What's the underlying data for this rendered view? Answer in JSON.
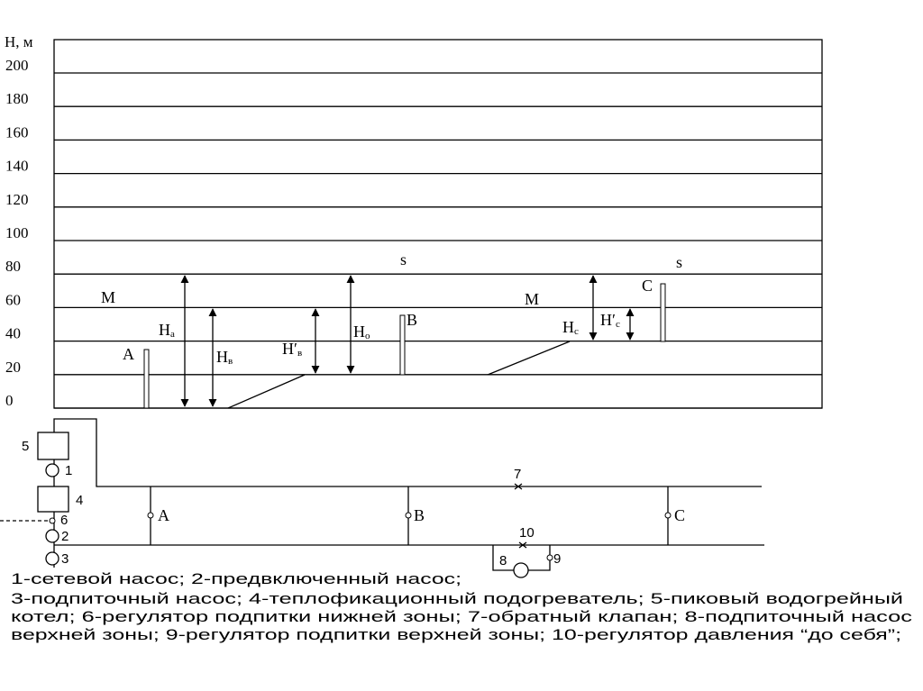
{
  "graph": {
    "axis_label": "H, м",
    "ticks": [
      0,
      20,
      40,
      60,
      80,
      100,
      120,
      140,
      160,
      180,
      200
    ],
    "labels": {
      "m_left": "М",
      "m_right": "М",
      "s_mid": "s",
      "s_right": "s",
      "a": "А",
      "b": "В",
      "c": "С",
      "ha": {
        "main": "H",
        "sub": "а"
      },
      "hv": {
        "main": "H",
        "sub": "в"
      },
      "hv2": {
        "main": "H′",
        "sub": "в"
      },
      "ho": {
        "main": "H",
        "sub": "о"
      },
      "hc": {
        "main": "H",
        "sub": "с"
      },
      "hc2": {
        "main": "H′",
        "sub": "с"
      }
    }
  },
  "scheme": {
    "labels": {
      "n5": "5",
      "n1": "1",
      "n4": "4",
      "n6": "6",
      "n2": "2",
      "n3": "3",
      "a": "А",
      "b": "В",
      "c": "С",
      "n7": "7",
      "n10": "10",
      "n8": "8",
      "n9": "9"
    }
  },
  "legend": {
    "lines": [
      "1-сетевой насос; 2-предвключенный насос;",
      "3-подпиточный насос; 4-теплофикационный подогреватель; 5-пиковый водогрейный",
      "котел; 6-регулятор подпитки нижней зоны; 7-обратный клапан; 8-подпиточный насос",
      "верхней зоны; 9-регулятор подпитки верхней зоны; 10-регулятор давления “до себя”;"
    ]
  }
}
